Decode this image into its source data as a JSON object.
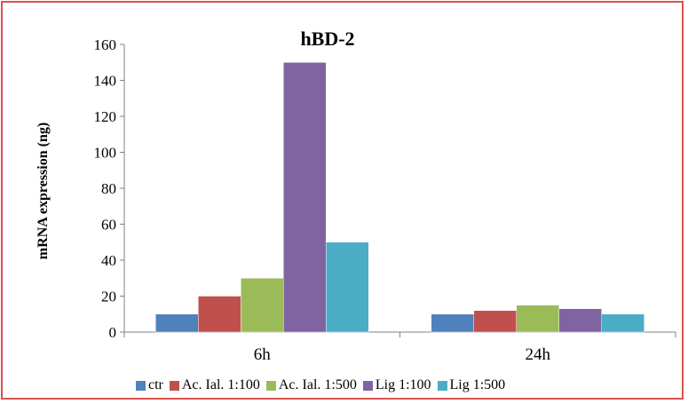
{
  "chart_data": {
    "type": "bar",
    "title": "hBD-2",
    "xlabel": "",
    "ylabel": "mRNA expression (ng)",
    "categories": [
      "6h",
      "24h"
    ],
    "ylim": [
      0,
      160
    ],
    "yticks": [
      0,
      20,
      40,
      60,
      80,
      100,
      120,
      140,
      160
    ],
    "grid": false,
    "legend_position": "bottom",
    "series": [
      {
        "name": "ctr",
        "color": "#4f81bd",
        "values": [
          10,
          10
        ]
      },
      {
        "name": "Ac. Ial. 1:100",
        "color": "#c0504d",
        "values": [
          20,
          12
        ]
      },
      {
        "name": "Ac. Ial. 1:500",
        "color": "#9bbb59",
        "values": [
          30,
          15
        ]
      },
      {
        "name": "Lig 1:100",
        "color": "#8064a2",
        "values": [
          150,
          13
        ]
      },
      {
        "name": "Lig 1:500",
        "color": "#4bacc6",
        "values": [
          50,
          10
        ]
      }
    ]
  }
}
